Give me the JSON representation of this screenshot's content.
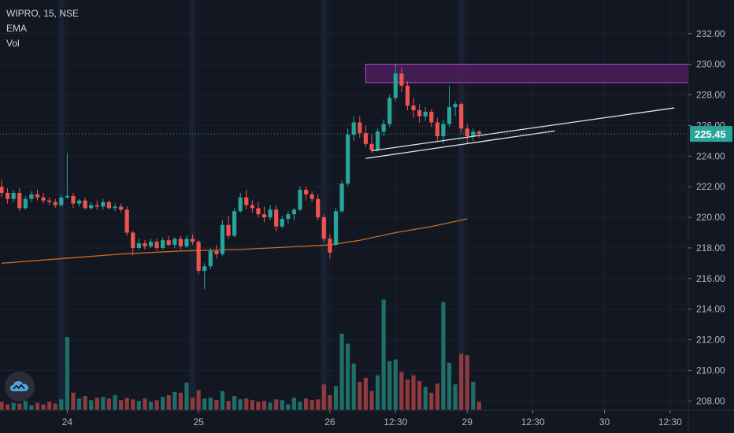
{
  "legend": {
    "title": "WIPRO, 15, NSE",
    "ema": "EMA",
    "vol": "Vol"
  },
  "colors": {
    "background": "#131722",
    "grid": "#1e2230",
    "up": "#26a69a",
    "down": "#ef5350",
    "up_volume": "#1f6f69",
    "down_volume": "#8f3a3e",
    "ema": "#c96b25",
    "zone_fill": "#4a1f5a",
    "zone_stroke": "#b84bd6",
    "trendline": "#e6e6e6",
    "price_line": "#26a69a",
    "session": "#1c2a3e"
  },
  "logo_icon": "tradingview-cloud-icon",
  "chart_data": {
    "type": "candlestick",
    "symbol": "WIPRO",
    "interval": "15",
    "exchange": "NSE",
    "ylim": [
      207.4,
      234.2
    ],
    "y_ticks": [
      "208.00",
      "210.00",
      "212.00",
      "214.00",
      "216.00",
      "218.00",
      "220.00",
      "222.00",
      "224.00",
      "226.00",
      "228.00",
      "230.00",
      "232.00"
    ],
    "x_ticks": [
      {
        "label": "24",
        "bar": 11
      },
      {
        "label": "25",
        "bar": 33
      },
      {
        "label": "26",
        "bar": 55
      },
      {
        "label": "12:30",
        "bar": 66
      },
      {
        "label": "29",
        "bar": 78
      },
      {
        "label": "12:30",
        "bar": 89
      },
      {
        "label": "30",
        "bar": 101
      },
      {
        "label": "12:30",
        "bar": 112
      }
    ],
    "last_price": 225.45,
    "last_price_label": "225.45",
    "candles": [
      [
        222.0,
        222.4,
        221.3,
        221.6
      ],
      [
        221.6,
        221.9,
        220.9,
        221.2
      ],
      [
        221.2,
        221.8,
        221.0,
        221.6
      ],
      [
        221.6,
        221.9,
        220.4,
        220.6
      ],
      [
        220.6,
        221.4,
        220.5,
        221.2
      ],
      [
        221.2,
        221.7,
        221.0,
        221.5
      ],
      [
        221.5,
        221.8,
        221.1,
        221.3
      ],
      [
        221.3,
        221.6,
        220.9,
        221.1
      ],
      [
        221.1,
        221.3,
        220.8,
        221.0
      ],
      [
        221.0,
        221.2,
        220.6,
        220.8
      ],
      [
        220.8,
        221.5,
        220.7,
        221.3
      ],
      [
        221.3,
        224.2,
        221.2,
        221.4
      ],
      [
        221.4,
        221.6,
        220.6,
        220.9
      ],
      [
        220.9,
        221.2,
        220.7,
        221.1
      ],
      [
        221.1,
        221.3,
        220.5,
        220.6
      ],
      [
        220.6,
        221.0,
        220.5,
        220.8
      ],
      [
        220.8,
        221.1,
        220.5,
        220.7
      ],
      [
        220.7,
        221.2,
        220.5,
        221.0
      ],
      [
        221.0,
        221.1,
        220.5,
        220.6
      ],
      [
        220.6,
        220.9,
        220.4,
        220.7
      ],
      [
        220.7,
        220.9,
        220.3,
        220.5
      ],
      [
        220.5,
        220.7,
        218.8,
        219.0
      ],
      [
        219.0,
        219.1,
        217.5,
        218.0
      ],
      [
        218.0,
        218.6,
        217.9,
        218.3
      ],
      [
        218.3,
        218.5,
        217.9,
        218.1
      ],
      [
        218.1,
        218.6,
        218.0,
        218.4
      ],
      [
        218.4,
        218.6,
        217.8,
        218.0
      ],
      [
        218.0,
        218.7,
        217.9,
        218.5
      ],
      [
        218.5,
        218.8,
        218.1,
        218.2
      ],
      [
        218.2,
        218.7,
        218.0,
        218.6
      ],
      [
        218.6,
        218.8,
        217.9,
        218.1
      ],
      [
        218.1,
        218.8,
        218.0,
        218.6
      ],
      [
        218.6,
        218.9,
        218.2,
        218.4
      ],
      [
        218.4,
        218.5,
        216.3,
        216.5
      ],
      [
        216.5,
        217.0,
        215.3,
        216.8
      ],
      [
        216.8,
        218.0,
        216.6,
        217.8
      ],
      [
        217.8,
        218.2,
        217.3,
        217.6
      ],
      [
        217.6,
        219.8,
        217.5,
        219.5
      ],
      [
        219.5,
        220.1,
        218.6,
        218.8
      ],
      [
        218.8,
        220.6,
        218.7,
        220.4
      ],
      [
        220.4,
        221.6,
        220.3,
        221.3
      ],
      [
        221.3,
        221.8,
        220.5,
        220.8
      ],
      [
        220.8,
        221.1,
        220.3,
        220.6
      ],
      [
        220.6,
        221.0,
        220.0,
        220.2
      ],
      [
        220.2,
        220.7,
        219.7,
        220.0
      ],
      [
        220.0,
        220.8,
        219.8,
        220.5
      ],
      [
        220.5,
        220.8,
        219.1,
        219.4
      ],
      [
        219.4,
        220.1,
        219.3,
        219.9
      ],
      [
        219.9,
        220.4,
        219.6,
        220.2
      ],
      [
        220.2,
        220.6,
        219.8,
        220.5
      ],
      [
        220.5,
        222.0,
        220.4,
        221.8
      ],
      [
        221.8,
        222.0,
        221.1,
        221.5
      ],
      [
        221.5,
        221.7,
        221.0,
        221.2
      ],
      [
        221.2,
        221.5,
        219.8,
        220.0
      ],
      [
        220.0,
        220.2,
        218.4,
        218.6
      ],
      [
        218.6,
        218.9,
        217.3,
        217.7
      ],
      [
        218.2,
        220.6,
        218.1,
        220.4
      ],
      [
        220.4,
        222.4,
        220.3,
        222.2
      ],
      [
        222.2,
        225.8,
        222.0,
        225.4
      ],
      [
        225.4,
        226.6,
        225.0,
        226.2
      ],
      [
        226.2,
        226.6,
        225.2,
        225.5
      ],
      [
        225.5,
        226.0,
        224.6,
        224.8
      ],
      [
        224.8,
        225.4,
        224.2,
        224.4
      ],
      [
        224.4,
        225.8,
        224.3,
        225.6
      ],
      [
        225.6,
        226.4,
        225.3,
        226.1
      ],
      [
        226.1,
        228.0,
        225.9,
        227.8
      ],
      [
        227.8,
        230.0,
        227.6,
        229.4
      ],
      [
        229.4,
        229.8,
        228.2,
        228.6
      ],
      [
        228.6,
        228.9,
        227.0,
        227.3
      ],
      [
        227.3,
        227.8,
        226.5,
        227.0
      ],
      [
        227.0,
        227.4,
        226.2,
        226.6
      ],
      [
        226.6,
        227.2,
        226.3,
        226.9
      ],
      [
        226.9,
        227.1,
        225.9,
        226.2
      ],
      [
        226.2,
        226.5,
        225.0,
        225.3
      ],
      [
        225.3,
        226.4,
        224.8,
        226.1
      ],
      [
        226.1,
        228.6,
        225.9,
        227.2
      ],
      [
        227.2,
        227.6,
        226.6,
        227.4
      ],
      [
        227.4,
        227.5,
        225.5,
        225.8
      ],
      [
        225.8,
        226.1,
        224.8,
        225.3
      ],
      [
        225.3,
        225.8,
        225.0,
        225.6
      ],
      [
        225.6,
        225.7,
        225.2,
        225.45
      ]
    ],
    "volume": [
      1.0,
      0.7,
      0.9,
      0.8,
      1.1,
      0.6,
      0.9,
      0.7,
      1.0,
      0.8,
      1.3,
      8.8,
      2.1,
      1.4,
      1.7,
      1.2,
      1.5,
      1.6,
      1.4,
      1.8,
      1.2,
      1.5,
      1.3,
      1.1,
      1.4,
      1.0,
      1.2,
      1.6,
      1.8,
      2.2,
      2.1,
      3.3,
      1.5,
      2.4,
      1.4,
      1.5,
      1.2,
      2.3,
      1.1,
      1.7,
      1.3,
      1.4,
      1.2,
      1.0,
      1.1,
      0.9,
      1.3,
      1.2,
      0.7,
      1.5,
      1.0,
      1.4,
      1.2,
      1.3,
      3.1,
      1.8,
      2.9,
      9.2,
      8.0,
      5.6,
      3.4,
      3.9,
      2.3,
      4.2,
      13.3,
      5.9,
      6.1,
      4.6,
      3.7,
      4.2,
      3.5,
      2.8,
      2.1,
      3.2,
      13.0,
      5.7,
      3.1,
      6.8,
      6.6,
      3.4,
      1.0
    ],
    "ema": [
      [
        0,
        217.0
      ],
      [
        10,
        217.3
      ],
      [
        20,
        217.6
      ],
      [
        30,
        217.8
      ],
      [
        40,
        217.9
      ],
      [
        50,
        218.1
      ],
      [
        55,
        218.2
      ],
      [
        60,
        218.5
      ],
      [
        66,
        219.0
      ],
      [
        72,
        219.4
      ],
      [
        78,
        219.9
      ]
    ],
    "zone": {
      "x0_bar": 61,
      "x1_bar": 119,
      "y_top": 230.0,
      "y_bottom": 228.8
    },
    "trendlines": [
      {
        "x0_bar": 62,
        "y0": 224.35,
        "x1_bar": 112.7,
        "y1": 227.15
      },
      {
        "x0_bar": 61,
        "y0": 223.85,
        "x1_bar": 92.7,
        "y1": 225.65
      }
    ],
    "session_bars": [
      10,
      32,
      54,
      77
    ]
  }
}
